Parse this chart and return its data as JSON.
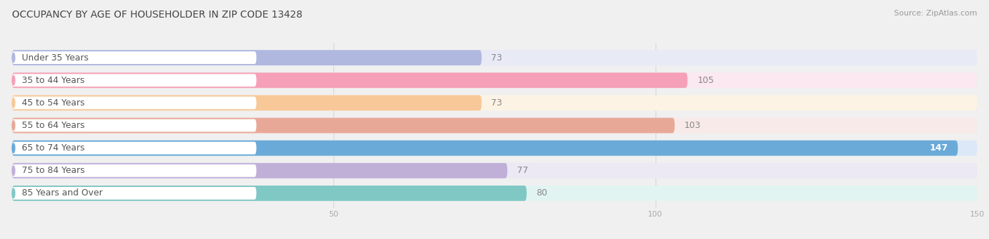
{
  "title": "OCCUPANCY BY AGE OF HOUSEHOLDER IN ZIP CODE 13428",
  "source": "Source: ZipAtlas.com",
  "categories": [
    "Under 35 Years",
    "35 to 44 Years",
    "45 to 54 Years",
    "55 to 64 Years",
    "65 to 74 Years",
    "75 to 84 Years",
    "85 Years and Over"
  ],
  "values": [
    73,
    105,
    73,
    103,
    147,
    77,
    80
  ],
  "bar_colors": [
    "#b0b8e0",
    "#f5a0b8",
    "#f8c898",
    "#e8a898",
    "#6aaad8",
    "#c0b0d8",
    "#80c8c4"
  ],
  "bar_bg_colors": [
    "#e8eaf6",
    "#fce8f0",
    "#fdf3e4",
    "#f8eae8",
    "#dce8f8",
    "#ece8f4",
    "#e2f4f2"
  ],
  "value_colors": [
    "#999999",
    "#999999",
    "#999999",
    "#999999",
    "#ffffff",
    "#999999",
    "#999999"
  ],
  "xlim_max": 150,
  "xticks": [
    50,
    100,
    150
  ],
  "title_fontsize": 10,
  "source_fontsize": 8,
  "label_fontsize": 9,
  "value_fontsize": 9,
  "bar_height": 0.68,
  "bar_gap": 0.32,
  "background_color": "#f0f0f0",
  "label_text_color": "#555555",
  "grid_color": "#d8d8d8",
  "tick_color": "#aaaaaa"
}
